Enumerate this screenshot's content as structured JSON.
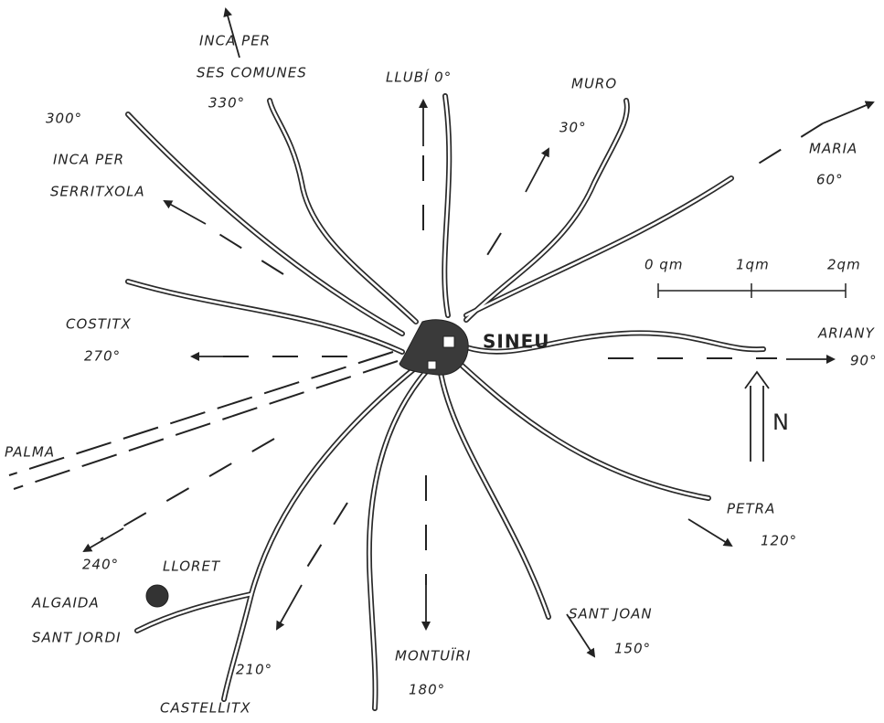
{
  "labels": {
    "inca_comunes": [
      "INCA PER",
      "SES COMUNES",
      "330°"
    ],
    "llubi": "LLUBÍ 0°",
    "muro": [
      "MURO",
      "30°"
    ],
    "inca_serritxola": [
      "300°",
      "INCA PER",
      "SERRITXOLA"
    ],
    "maria": [
      "MARIA",
      "60°"
    ],
    "scale": [
      "0 qm",
      "1qm",
      "2qm"
    ],
    "costitx": [
      "COSTITX",
      "270°"
    ],
    "sineu": "SINEU",
    "ariany": [
      "ARIANY",
      "90°"
    ],
    "north": "N",
    "palma": "PALMA",
    "petra": [
      "PETRA",
      "120°"
    ],
    "s240": "240°",
    "lloret": "LLORET",
    "algaida": "ALGAIDA",
    "sant_jordi": "SANT JORDI",
    "s210": "210°",
    "castellitx": "CASTELLITX",
    "montuiri": [
      "MONTUÏRI",
      "180°"
    ],
    "sant_joan": [
      "SANT JOAN",
      "150°"
    ]
  }
}
